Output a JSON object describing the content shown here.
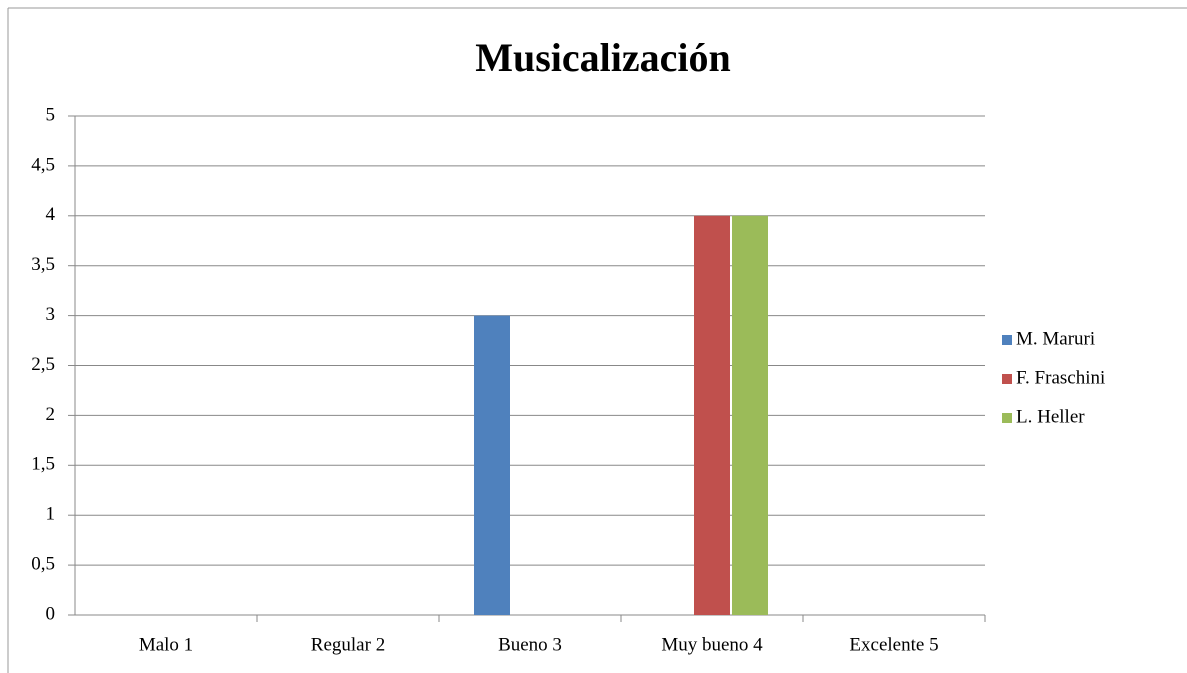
{
  "chart_data": {
    "type": "bar",
    "title": "Musicalización",
    "categories": [
      "Malo 1",
      "Regular 2",
      "Bueno 3",
      "Muy bueno 4",
      "Excelente 5"
    ],
    "series": [
      {
        "name": "M. Maruri",
        "color": "#4f81bd",
        "values": [
          0,
          0,
          3,
          0,
          0
        ]
      },
      {
        "name": "F. Fraschini",
        "color": "#c0504d",
        "values": [
          0,
          0,
          0,
          4,
          0
        ]
      },
      {
        "name": "L. Heller",
        "color": "#9bbb59",
        "values": [
          0,
          0,
          0,
          4,
          0
        ]
      }
    ],
    "ylim": [
      0,
      5
    ],
    "yticks": [
      0,
      {
        "value": 0.5,
        "label": "0,5"
      },
      1,
      {
        "value": 1.5,
        "label": "1,5"
      },
      2,
      {
        "value": 2.5,
        "label": "2,5"
      },
      3,
      {
        "value": 3.5,
        "label": "3,5"
      },
      4,
      {
        "value": 4.5,
        "label": "4,5"
      },
      5
    ],
    "grid": true,
    "legend": "right"
  }
}
